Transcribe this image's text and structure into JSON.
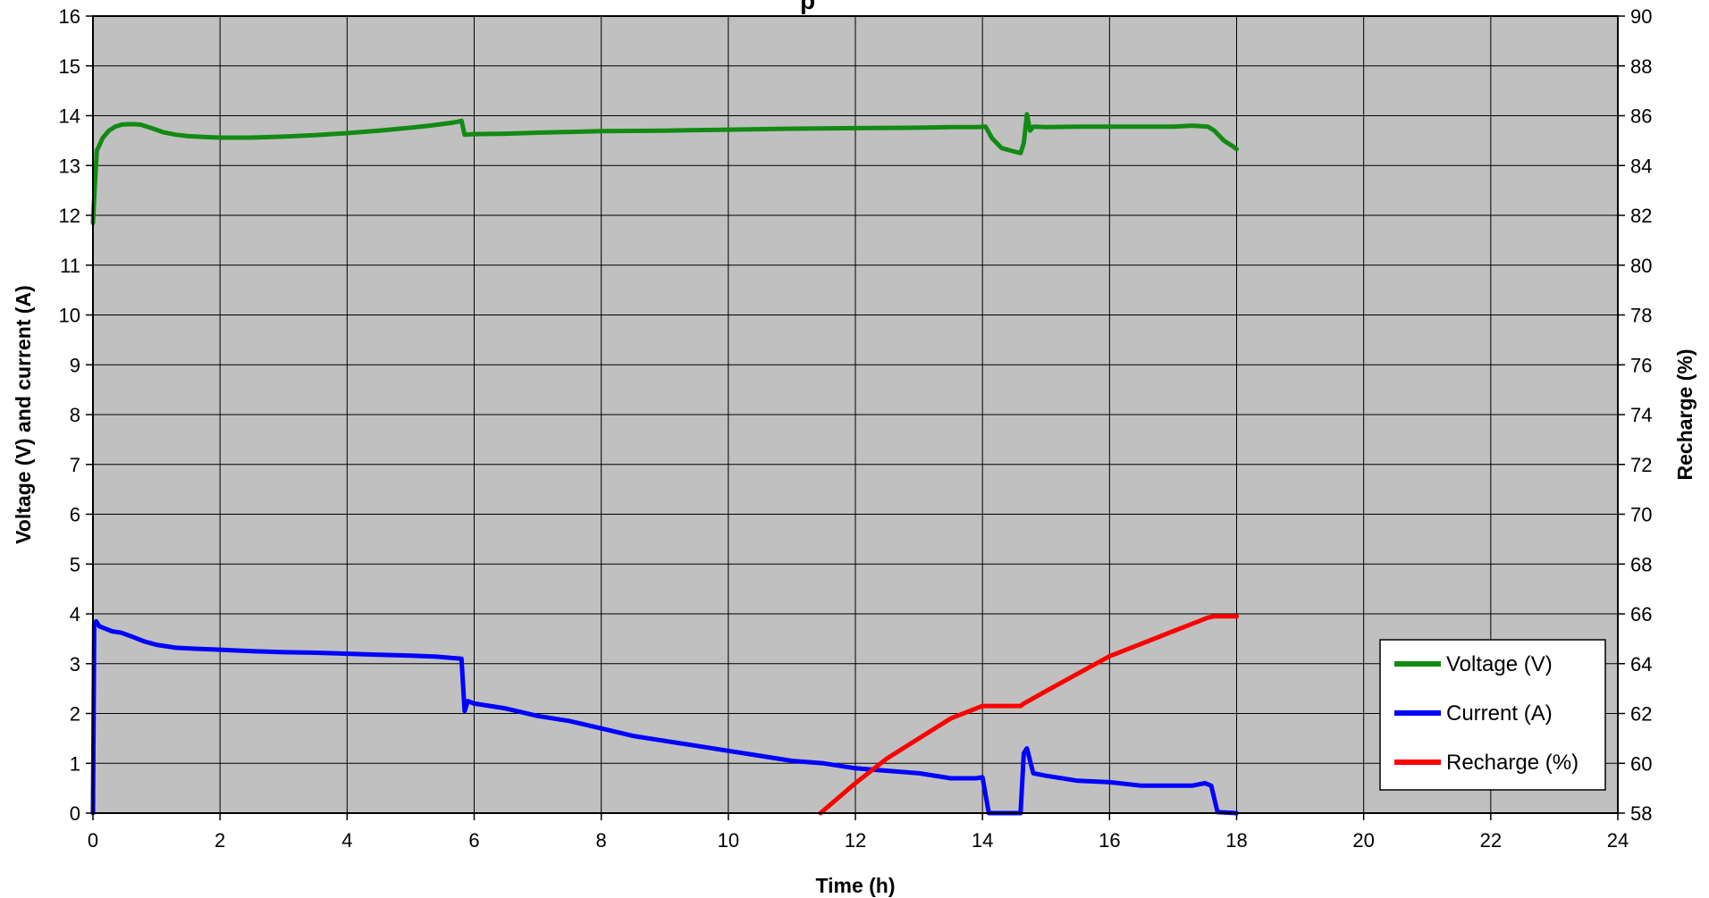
{
  "chart_data": {
    "type": "line",
    "title": "",
    "title_partial": "p",
    "xlabel": "Time (h)",
    "ylabel": "Voltage (V) and current (A)",
    "y2label": "Recharge (%)",
    "xlim": [
      0,
      24
    ],
    "ylim": [
      0,
      16
    ],
    "y2lim": [
      58,
      90
    ],
    "xticks": [
      "0",
      "2",
      "4",
      "6",
      "8",
      "10",
      "12",
      "14",
      "16",
      "18",
      "20",
      "22",
      "24"
    ],
    "yticks": [
      "0",
      "1",
      "2",
      "3",
      "4",
      "5",
      "6",
      "7",
      "8",
      "9",
      "10",
      "11",
      "12",
      "13",
      "14",
      "15",
      "16"
    ],
    "y2ticks": [
      "58",
      "60",
      "62",
      "64",
      "66",
      "68",
      "70",
      "72",
      "74",
      "76",
      "78",
      "80",
      "82",
      "84",
      "86",
      "88",
      "90"
    ],
    "grid": true,
    "legend_position": "bottom-right",
    "plot_background": "#c0c0c0",
    "series": [
      {
        "name": "Voltage (V)",
        "axis": "left",
        "color": "#138a13",
        "x": [
          0,
          0.03,
          0.06,
          0.1,
          0.15,
          0.25,
          0.35,
          0.45,
          0.55,
          0.65,
          0.75,
          0.85,
          0.95,
          1.1,
          1.3,
          1.5,
          1.8,
          2.0,
          2.5,
          3.0,
          3.5,
          4.0,
          4.5,
          5.0,
          5.3,
          5.6,
          5.75,
          5.8,
          5.85,
          6.0,
          6.5,
          7.0,
          8.0,
          9.0,
          10.0,
          11.0,
          12.0,
          13.0,
          13.5,
          13.9,
          14.05,
          14.15,
          14.3,
          14.5,
          14.6,
          14.65,
          14.7,
          14.75,
          14.8,
          15.0,
          15.5,
          16.0,
          16.5,
          17.0,
          17.3,
          17.55,
          17.65,
          17.8,
          17.95,
          18.0
        ],
        "values": [
          11.85,
          12.6,
          13.3,
          13.4,
          13.55,
          13.7,
          13.78,
          13.82,
          13.83,
          13.83,
          13.82,
          13.78,
          13.74,
          13.67,
          13.62,
          13.59,
          13.57,
          13.56,
          13.56,
          13.58,
          13.61,
          13.65,
          13.7,
          13.76,
          13.8,
          13.85,
          13.88,
          13.9,
          13.62,
          13.63,
          13.64,
          13.66,
          13.69,
          13.7,
          13.72,
          13.74,
          13.75,
          13.76,
          13.77,
          13.77,
          13.78,
          13.55,
          13.35,
          13.28,
          13.25,
          13.45,
          14.03,
          13.7,
          13.78,
          13.77,
          13.78,
          13.78,
          13.78,
          13.78,
          13.8,
          13.78,
          13.7,
          13.5,
          13.38,
          13.33
        ]
      },
      {
        "name": "Current (A)",
        "axis": "left",
        "color": "#0000ff",
        "x": [
          0,
          0.02,
          0.05,
          0.1,
          0.2,
          0.3,
          0.45,
          0.6,
          0.8,
          1.0,
          1.3,
          1.6,
          2.0,
          2.5,
          3.0,
          3.5,
          4.0,
          4.5,
          5.0,
          5.4,
          5.8,
          5.85,
          5.9,
          6.0,
          6.5,
          7.0,
          7.5,
          8.0,
          8.5,
          9.0,
          9.5,
          10.0,
          10.5,
          11.0,
          11.5,
          12.0,
          12.5,
          13.0,
          13.5,
          13.9,
          14.0,
          14.1,
          14.15,
          14.6,
          14.65,
          14.7,
          14.8,
          15.0,
          15.5,
          16.0,
          16.5,
          17.0,
          17.3,
          17.5,
          17.6,
          17.7,
          18.0
        ],
        "values": [
          0,
          3.8,
          3.85,
          3.75,
          3.7,
          3.65,
          3.62,
          3.55,
          3.45,
          3.38,
          3.32,
          3.3,
          3.28,
          3.25,
          3.23,
          3.22,
          3.2,
          3.18,
          3.16,
          3.14,
          3.1,
          2.05,
          2.25,
          2.2,
          2.1,
          1.95,
          1.85,
          1.7,
          1.55,
          1.45,
          1.35,
          1.25,
          1.15,
          1.05,
          1.0,
          0.9,
          0.85,
          0.8,
          0.7,
          0.7,
          0.72,
          0.0,
          0.0,
          0.0,
          1.2,
          1.3,
          0.8,
          0.75,
          0.65,
          0.62,
          0.55,
          0.55,
          0.55,
          0.6,
          0.55,
          0.02,
          0.0
        ]
      },
      {
        "name": "Recharge (%)",
        "axis": "right",
        "color": "#ff0000",
        "x": [
          11.45,
          12.0,
          12.5,
          13.0,
          13.5,
          14.0,
          14.1,
          14.2,
          14.6,
          14.65,
          15.0,
          15.5,
          16.0,
          16.5,
          17.0,
          17.3,
          17.55,
          17.65,
          18.0
        ],
        "values": [
          58.0,
          59.2,
          60.2,
          61.0,
          61.8,
          62.3,
          62.3,
          62.3,
          62.3,
          62.4,
          62.9,
          63.6,
          64.3,
          64.8,
          65.3,
          65.6,
          65.85,
          65.9,
          65.9
        ]
      }
    ]
  }
}
